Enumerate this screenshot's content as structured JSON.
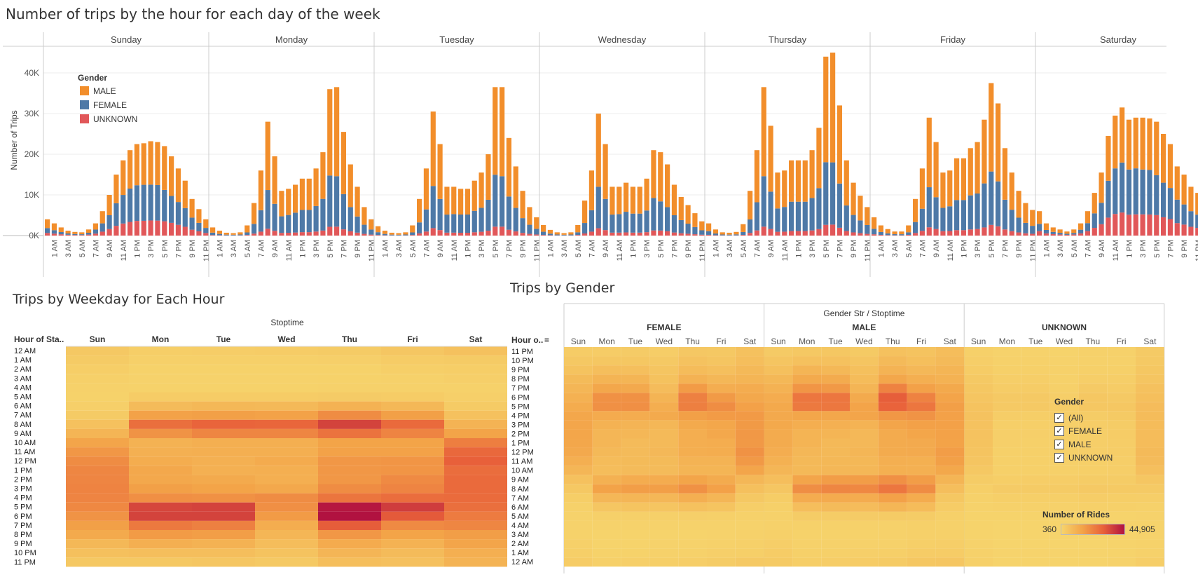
{
  "titles": {
    "top": "Number of trips by the hour for each day of the week",
    "weekday": "Trips by Weekday for Each Hour",
    "gender": "Trips by Gender"
  },
  "colors": {
    "male": "#f28e2b",
    "female": "#4e79a7",
    "unknown": "#e15759",
    "ramp_low": "#f6d46c",
    "ramp_high": "#b11240"
  },
  "legend_gender": {
    "title": "Gender",
    "items": [
      "MALE",
      "FEMALE",
      "UNKNOWN"
    ]
  },
  "filter_gender": {
    "title": "Gender",
    "items": [
      "(All)",
      "FEMALE",
      "MALE",
      "UNKNOWN"
    ]
  },
  "legend_rides": {
    "title": "Number of Rides",
    "min": "360",
    "max": "44,905"
  },
  "heatmap_weekday": {
    "row_header": "Hour of Sta..",
    "col_group": "Stoptime",
    "cols": [
      "Sun",
      "Mon",
      "Tue",
      "Wed",
      "Thu",
      "Fri",
      "Sat"
    ]
  },
  "heatmap_gender": {
    "row_header": "Hour o..",
    "col_group": "Gender Str / Stoptime",
    "groups": [
      "FEMALE",
      "MALE",
      "UNKNOWN"
    ],
    "cols": [
      "Sun",
      "Mon",
      "Tue",
      "Wed",
      "Thu",
      "Fri",
      "Sat"
    ]
  },
  "chart_data": [
    {
      "type": "bar",
      "stacked": true,
      "title": "Number of trips by the hour for each day of the week",
      "ylabel": "Number of Trips",
      "ylim": [
        0,
        45000
      ],
      "yticks": [
        0,
        10000,
        20000,
        30000,
        40000
      ],
      "ytick_labels": [
        "0K",
        "10K",
        "20K",
        "30K",
        "40K"
      ],
      "panels": [
        "Sunday",
        "Monday",
        "Tuesday",
        "Wednesday",
        "Thursday",
        "Friday",
        "Saturday"
      ],
      "hours": [
        "12 AM",
        "1 AM",
        "2 AM",
        "3 AM",
        "4 AM",
        "5 AM",
        "6 AM",
        "7 AM",
        "8 AM",
        "9 AM",
        "10 AM",
        "11 AM",
        "12 PM",
        "1 PM",
        "2 PM",
        "3 PM",
        "4 PM",
        "5 PM",
        "6 PM",
        "7 PM",
        "8 PM",
        "9 PM",
        "10 PM",
        "11 PM"
      ],
      "xtick_labels": [
        "1 AM",
        "3 AM",
        "5 AM",
        "7 AM",
        "9 AM",
        "11 AM",
        "1 PM",
        "3 PM",
        "5 PM",
        "7 PM",
        "9 PM",
        "11 PM"
      ],
      "series_names": [
        "MALE",
        "FEMALE",
        "UNKNOWN"
      ],
      "totals": {
        "Sunday": [
          4000,
          3000,
          2000,
          1200,
          900,
          800,
          1500,
          3000,
          6000,
          10000,
          15000,
          18500,
          21000,
          22500,
          22700,
          23200,
          23000,
          22000,
          19500,
          16500,
          13500,
          9000,
          6500,
          4000
        ],
        "Monday": [
          2000,
          1200,
          700,
          600,
          800,
          2500,
          8000,
          16000,
          28000,
          19500,
          11000,
          11500,
          12500,
          14000,
          14000,
          16500,
          20500,
          36000,
          36500,
          25500,
          17500,
          12000,
          7000,
          4000
        ],
        "Tuesday": [
          2300,
          1200,
          700,
          600,
          800,
          2500,
          9000,
          16500,
          30500,
          22500,
          12000,
          12000,
          11500,
          11500,
          13500,
          15500,
          20000,
          36500,
          36500,
          24000,
          17000,
          11000,
          7000,
          4500
        ],
        "Wednesday": [
          2600,
          1400,
          800,
          600,
          800,
          2600,
          8600,
          16000,
          30000,
          22500,
          12000,
          12000,
          13000,
          12000,
          12000,
          14000,
          21000,
          20500,
          17500,
          12500,
          9500,
          7500,
          5500,
          3500
        ],
        "Thursday": [
          3000,
          1500,
          800,
          700,
          900,
          2800,
          11000,
          21000,
          36500,
          27000,
          15500,
          16000,
          18500,
          18500,
          18500,
          21000,
          26500,
          44000,
          45000,
          32000,
          18500,
          13000,
          9800,
          7000
        ],
        "Friday": [
          4500,
          2500,
          1600,
          1000,
          1000,
          2500,
          9000,
          16500,
          29000,
          23000,
          15500,
          16000,
          19000,
          19000,
          21500,
          23000,
          28500,
          37500,
          32500,
          21500,
          15500,
          11000,
          8000,
          6300
        ],
        "Saturday": [
          6000,
          3000,
          2000,
          1500,
          1000,
          1500,
          3000,
          6000,
          10500,
          15500,
          24500,
          29500,
          31500,
          28500,
          29000,
          29000,
          28800,
          28000,
          25000,
          22500,
          17000,
          15000,
          12000,
          10500
        ]
      },
      "female_share": [
        0.3,
        0.28,
        0.27,
        0.27,
        0.26,
        0.25,
        0.3,
        0.33,
        0.34,
        0.34,
        0.37,
        0.38,
        0.39,
        0.39,
        0.39,
        0.38,
        0.38,
        0.35,
        0.34,
        0.34,
        0.34,
        0.33,
        0.32,
        0.31
      ],
      "unknown_share": {
        "Sunday": 0.16,
        "Monday": 0.06,
        "Tuesday": 0.06,
        "Wednesday": 0.06,
        "Thursday": 0.06,
        "Friday": 0.07,
        "Saturday": 0.18
      }
    },
    {
      "type": "heatmap",
      "title": "Trips by Weekday for Each Hour",
      "note": "values derived from the stacked bar totals; Hour of Sta.. rows x Stoptime weekday cols",
      "rows": [
        "12 AM",
        "1 AM",
        "2 AM",
        "3 AM",
        "4 AM",
        "5 AM",
        "6 AM",
        "7 AM",
        "8 AM",
        "9 AM",
        "10 AM",
        "11 AM",
        "12 PM",
        "1 PM",
        "2 PM",
        "3 PM",
        "4 PM",
        "5 PM",
        "6 PM",
        "7 PM",
        "8 PM",
        "9 PM",
        "10 PM",
        "11 PM"
      ],
      "cols": [
        "Sun",
        "Mon",
        "Tue",
        "Wed",
        "Thu",
        "Fri",
        "Sat"
      ],
      "vmin": 360,
      "vmax": 44905
    },
    {
      "type": "heatmap",
      "title": "Trips by Gender",
      "rows_order": "11 PM at top to 12 AM at bottom",
      "rows": [
        "11 PM",
        "10 PM",
        "9 PM",
        "8 PM",
        "7 PM",
        "6 PM",
        "5 PM",
        "4 PM",
        "3 PM",
        "2 PM",
        "1 PM",
        "12 PM",
        "11 AM",
        "10 AM",
        "9 AM",
        "8 AM",
        "7 AM",
        "6 AM",
        "5 AM",
        "4 AM",
        "3 AM",
        "2 AM",
        "1 AM",
        "12 AM"
      ],
      "groups": [
        "FEMALE",
        "MALE",
        "UNKNOWN"
      ],
      "cols": [
        "Sun",
        "Mon",
        "Tue",
        "Wed",
        "Thu",
        "Fri",
        "Sat"
      ],
      "vmin": 360,
      "vmax": 44905
    }
  ]
}
